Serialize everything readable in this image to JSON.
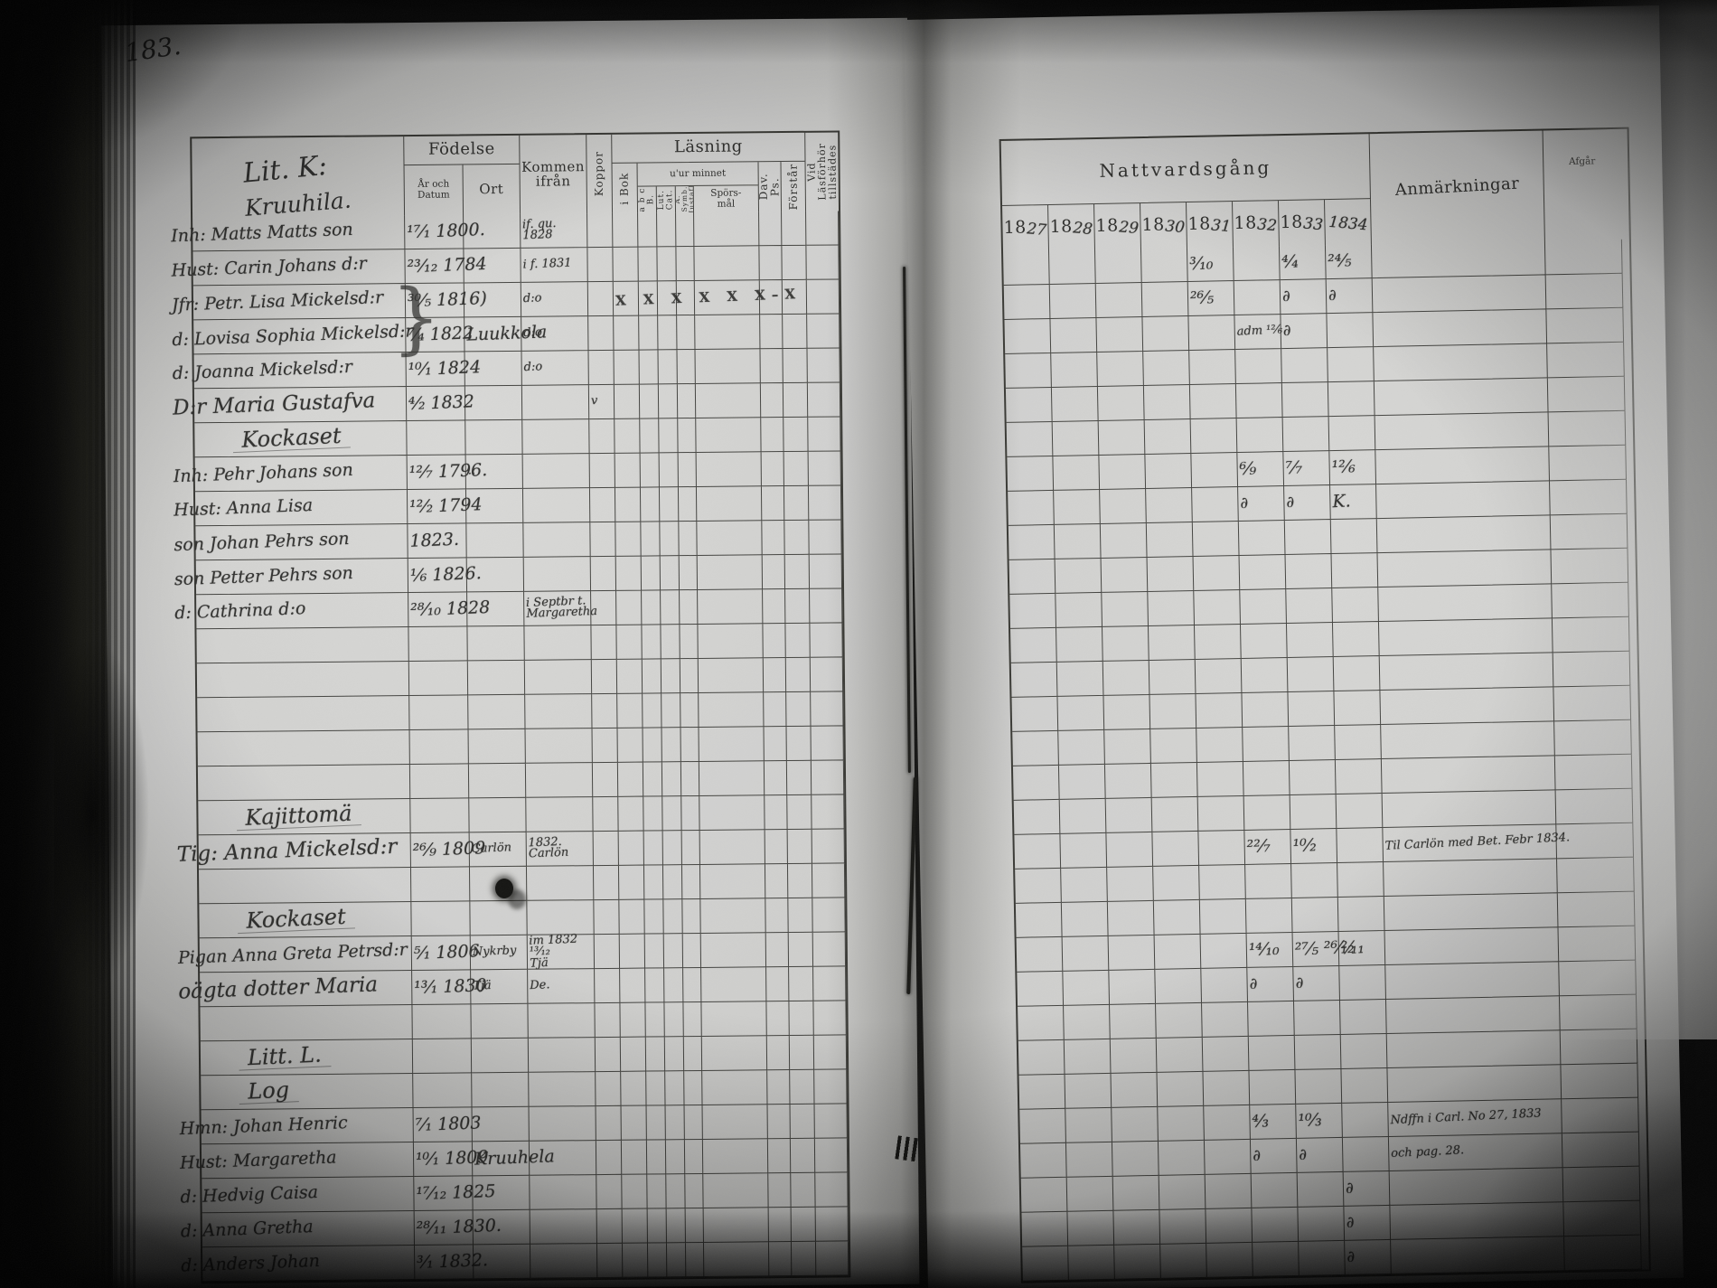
{
  "page_number": "183.",
  "left_page": {
    "header": {
      "litt": "Lit. K:",
      "village": "Kruuhila.",
      "fodelse": "Födelse",
      "ar_och_datum": "År och\nDatum",
      "ort": "Ort",
      "kommen_ifran": "Kommen\nifrån",
      "koppor": "Koppor",
      "lasning": "Läsning",
      "i_bok": "i Bok",
      "utur_minnet": "u'ur minnet",
      "abc": "a b c B.",
      "lut_cat": "Lut. Cat.",
      "symb": "Å. Symb.\nHustafl.",
      "sporsmal": "Spörs-\nmål",
      "dav_ps": "Dav. Ps.",
      "forstar": "Förstår",
      "vid_lasforhor": "Vid Läsförhör\ntillstädes"
    },
    "entries": [
      {
        "r": 0,
        "c": "name",
        "t": "Inh: Matts Matts son"
      },
      {
        "r": 0,
        "c": "datum",
        "t": "¹⁷⁄₁ 1800."
      },
      {
        "r": 0,
        "c": "kommen",
        "t": "if. qu.\n1828",
        "cls": "sm"
      },
      {
        "r": 1,
        "c": "name",
        "t": "Hust: Carin Johans d:r"
      },
      {
        "r": 1,
        "c": "datum",
        "t": "²³⁄₁₂ 1784"
      },
      {
        "r": 1,
        "c": "kommen",
        "t": "i f. 1831",
        "cls": "sm"
      },
      {
        "r": 2,
        "c": "name",
        "t": "Jfr: Petr. Lisa Mickelsd:r"
      },
      {
        "r": 2,
        "c": "datum",
        "t": "³⁰⁄₅ 1816)"
      },
      {
        "r": 2,
        "c": "kommen",
        "t": "d:o",
        "cls": "sm"
      },
      {
        "r": 2,
        "c": "ibok",
        "t": "X X X X X X–X",
        "cls": "xmarks"
      },
      {
        "r": 3,
        "c": "name",
        "t": "d: Lovisa Sophia Mickelsd:r"
      },
      {
        "r": 3,
        "c": "datum",
        "t": "⁷⁄₄ 1822"
      },
      {
        "r": 3,
        "c": "ort",
        "t": "Luukkola",
        "cls": "nowrap"
      },
      {
        "r": 3,
        "c": "kommen",
        "t": "d:o",
        "cls": "sm"
      },
      {
        "r": 3,
        "c": "datum2",
        "t": "}",
        "cls": "brace"
      },
      {
        "r": 4,
        "c": "name",
        "t": "d: Joanna Mickelsd:r"
      },
      {
        "r": 4,
        "c": "datum",
        "t": "¹⁰⁄₁ 1824"
      },
      {
        "r": 4,
        "c": "kommen",
        "t": "d:o",
        "cls": "sm"
      },
      {
        "r": 5,
        "c": "name",
        "t": "D:r Maria Gustafva",
        "cls": "lg"
      },
      {
        "r": 5,
        "c": "datum",
        "t": "⁴⁄₂ 1832"
      },
      {
        "r": 5,
        "c": "koppor",
        "t": "v",
        "cls": "sm"
      },
      {
        "r": 6,
        "c": "name",
        "t": "Kockaset",
        "cls": "grp"
      },
      {
        "r": 7,
        "c": "name",
        "t": "Inh: Pehr Johans son"
      },
      {
        "r": 7,
        "c": "datum",
        "t": "¹²⁄₇ 1796."
      },
      {
        "r": 7,
        "c": "ort",
        "t": "..",
        "cls": "sm"
      },
      {
        "r": 8,
        "c": "name",
        "t": "Hust: Anna Lisa"
      },
      {
        "r": 8,
        "c": "datum",
        "t": "¹²⁄₂ 1794"
      },
      {
        "r": 9,
        "c": "name",
        "t": "son Johan Pehrs son"
      },
      {
        "r": 9,
        "c": "datum",
        "t": "1823."
      },
      {
        "r": 10,
        "c": "name",
        "t": "son Petter Pehrs son"
      },
      {
        "r": 10,
        "c": "datum",
        "t": "¹⁄₆ 1826."
      },
      {
        "r": 11,
        "c": "name",
        "t": "d: Cathrina d:o"
      },
      {
        "r": 11,
        "c": "datum",
        "t": "²⁸⁄₁₀ 1828"
      },
      {
        "r": 11,
        "c": "kommen",
        "t": "i Septbr t.\nMargaretha",
        "cls": "sm"
      },
      {
        "r": 17,
        "c": "name",
        "t": "Kajittomä",
        "cls": "grp"
      },
      {
        "r": 18,
        "c": "name",
        "t": "Tig: Anna Mickelsd:r",
        "cls": "lg"
      },
      {
        "r": 18,
        "c": "datum",
        "t": "²⁶⁄₉ 1809"
      },
      {
        "r": 18,
        "c": "ort",
        "t": "Carlön",
        "cls": "sm"
      },
      {
        "r": 18,
        "c": "kommen",
        "t": "1832.\nCarlön",
        "cls": "sm"
      },
      {
        "r": 20,
        "c": "name",
        "t": "Kockaset",
        "cls": "grp"
      },
      {
        "r": 21,
        "c": "name",
        "t": "Pigan Anna Greta Petrsd:r"
      },
      {
        "r": 21,
        "c": "datum",
        "t": "⁵⁄₁ 1806"
      },
      {
        "r": 21,
        "c": "ort",
        "t": "Nykrby",
        "cls": "sm"
      },
      {
        "r": 21,
        "c": "kommen",
        "t": "im 1832 ¹³⁄₁₂\nTjä",
        "cls": "sm"
      },
      {
        "r": 22,
        "c": "name",
        "t": "oägta dotter Maria",
        "cls": "lg"
      },
      {
        "r": 22,
        "c": "datum",
        "t": "¹³⁄₁ 1830"
      },
      {
        "r": 22,
        "c": "ort",
        "t": "Tjä",
        "cls": "sm"
      },
      {
        "r": 22,
        "c": "kommen",
        "t": "De.",
        "cls": "sm"
      },
      {
        "r": 24,
        "c": "name",
        "t": "Litt. L.",
        "cls": "grp"
      },
      {
        "r": 25,
        "c": "name",
        "t": "Log",
        "cls": "grp"
      },
      {
        "r": 26,
        "c": "name",
        "t": "Hmn: Johan Henric"
      },
      {
        "r": 26,
        "c": "datum",
        "t": "⁷⁄₁ 1803"
      },
      {
        "r": 27,
        "c": "name",
        "t": "Hust: Margaretha"
      },
      {
        "r": 27,
        "c": "datum",
        "t": "¹⁰⁄₁ 1809"
      },
      {
        "r": 27,
        "c": "ort",
        "t": "Kruuhela",
        "cls": "nowrap"
      },
      {
        "r": 28,
        "c": "name",
        "t": "d: Hedvig Caisa"
      },
      {
        "r": 28,
        "c": "datum",
        "t": "¹⁷⁄₁₂ 1825"
      },
      {
        "r": 29,
        "c": "name",
        "t": "d: Anna Gretha"
      },
      {
        "r": 29,
        "c": "datum",
        "t": "²⁸⁄₁₁ 1830."
      },
      {
        "r": 30,
        "c": "name",
        "t": "d: Anders Johan"
      },
      {
        "r": 30,
        "c": "datum",
        "t": "³⁄₁ 1832."
      }
    ]
  },
  "right_page": {
    "header": {
      "nattvardsgang": "Nattvardsgång",
      "years": [
        {
          "p": "18",
          "w": "27"
        },
        {
          "p": "18",
          "w": "28"
        },
        {
          "p": "18",
          "w": "29"
        },
        {
          "p": "18",
          "w": "30"
        },
        {
          "p": "18",
          "w": "31"
        },
        {
          "p": "18",
          "w": "32"
        },
        {
          "p": "18",
          "w": "33"
        },
        {
          "p": "",
          "w": "1834"
        }
      ],
      "anmarkningar": "Anmärkningar",
      "afgar": "Afgår"
    },
    "entries": [
      {
        "r": 0,
        "c": "y4",
        "t": "³⁄₁₀"
      },
      {
        "r": 0,
        "c": "y6",
        "t": "⁴⁄₄"
      },
      {
        "r": 0,
        "c": "y7",
        "t": "²⁴⁄₅"
      },
      {
        "r": 1,
        "c": "y4",
        "t": "²⁶⁄₅"
      },
      {
        "r": 1,
        "c": "y6",
        "t": "∂",
        "cls": "do"
      },
      {
        "r": 1,
        "c": "y7",
        "t": "∂",
        "cls": "do"
      },
      {
        "r": 2,
        "c": "y5",
        "t": "adm ¹²⁄₆",
        "cls": "sm nowrap"
      },
      {
        "r": 2,
        "c": "y6",
        "t": "∂",
        "cls": "do"
      },
      {
        "r": 6,
        "c": "y5",
        "t": "⁶⁄₉"
      },
      {
        "r": 6,
        "c": "y6",
        "t": "⁷⁄₇"
      },
      {
        "r": 6,
        "c": "y7",
        "t": "¹²⁄₆"
      },
      {
        "r": 7,
        "c": "y5",
        "t": "∂",
        "cls": "do"
      },
      {
        "r": 7,
        "c": "y6",
        "t": "∂",
        "cls": "do"
      },
      {
        "r": 7,
        "c": "y7",
        "t": "K."
      },
      {
        "r": 17,
        "c": "y5",
        "t": "²²⁄₇"
      },
      {
        "r": 17,
        "c": "y6",
        "t": "¹⁰⁄₂"
      },
      {
        "r": 17,
        "c": "anm",
        "t": "Til Carlön med Bet. Febr 1834.",
        "cls": "sm nowrap"
      },
      {
        "r": 20,
        "c": "y5",
        "t": "¹⁴⁄₁₀"
      },
      {
        "r": 20,
        "c": "y6",
        "t": "²⁷⁄₅ ²⁶⁄₁₂",
        "cls": "nowrap"
      },
      {
        "r": 20,
        "c": "y7",
        "t": "²⁄₁₁"
      },
      {
        "r": 21,
        "c": "y5",
        "t": "∂",
        "cls": "do"
      },
      {
        "r": 21,
        "c": "y6",
        "t": "∂",
        "cls": "do"
      },
      {
        "r": 25,
        "c": "y5",
        "t": "⁴⁄₃"
      },
      {
        "r": 25,
        "c": "y6",
        "t": "¹⁰⁄₃"
      },
      {
        "r": 25,
        "c": "anm",
        "t": "Ndffn i Carl. No 27, 1833",
        "cls": "sm nowrap"
      },
      {
        "r": 26,
        "c": "anm",
        "t": "och pag. 28.",
        "cls": "sm"
      },
      {
        "r": 26,
        "c": "y5",
        "t": "∂",
        "cls": "do"
      },
      {
        "r": 26,
        "c": "y6",
        "t": "∂",
        "cls": "do"
      },
      {
        "r": 27,
        "c": "y7",
        "t": "∂",
        "cls": "do"
      },
      {
        "r": 28,
        "c": "y7",
        "t": "∂",
        "cls": "do"
      },
      {
        "r": 29,
        "c": "y7",
        "t": "∂",
        "cls": "do"
      }
    ]
  }
}
